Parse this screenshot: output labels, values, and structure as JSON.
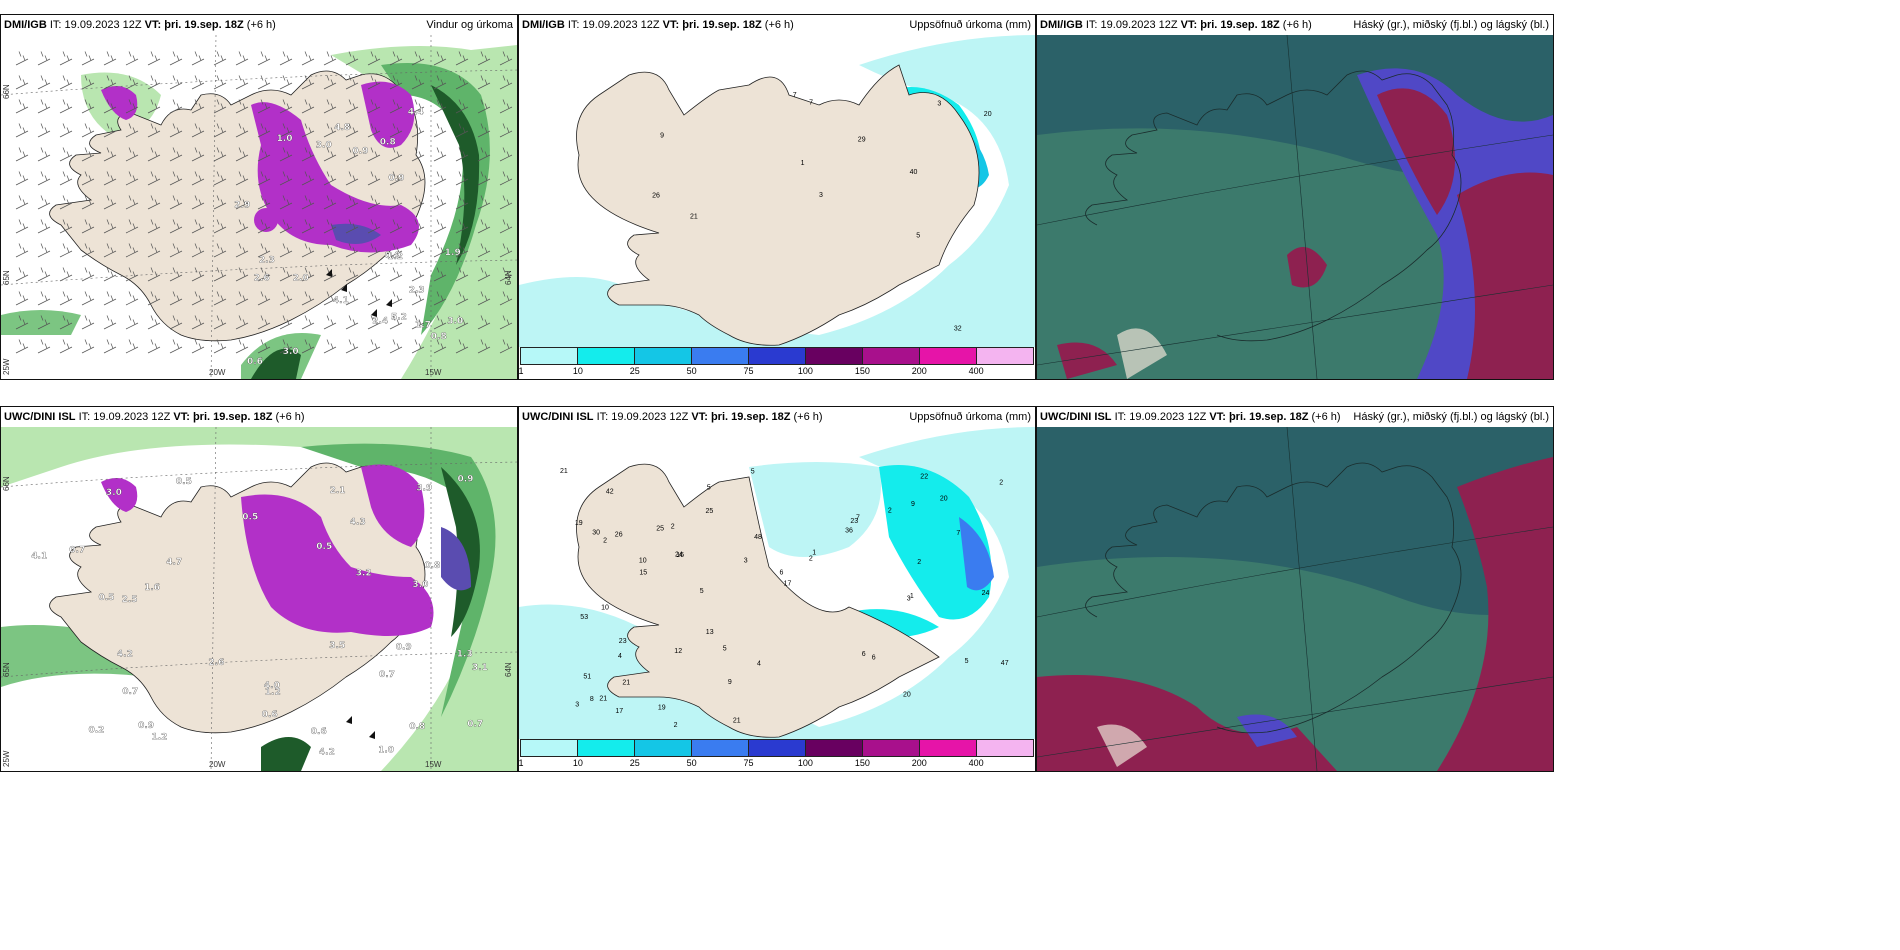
{
  "panels": {
    "p1": {
      "model": "DMI/IGB",
      "it": "19.09.2023 12Z",
      "vt_label": "VT:",
      "vt": "þri. 19.sep. 18Z",
      "lead": "(+6 h)",
      "product": "Vindur og úrkoma",
      "lat_labels": [
        "66N",
        "65N"
      ],
      "lat_labels2": [
        "64N"
      ],
      "lon_labels": [
        "20W",
        "15W"
      ],
      "lon_left": "25W",
      "values": [
        "4.1",
        "4.8",
        "3.0",
        "2.0",
        "0.6",
        "4.4",
        "1.9",
        "0.8",
        "3.0",
        "2.4",
        "3.0",
        "2.9",
        "2.3",
        "0.9",
        "0.9",
        "1.2",
        "0.8",
        "0.9",
        "5.2",
        "1.0",
        "1.7",
        "2.6",
        "2.3"
      ]
    },
    "p2": {
      "model": "DMI/IGB",
      "it": "19.09.2023 12Z",
      "vt_label": "VT:",
      "vt": "þri. 19.sep. 18Z",
      "lead": "(+6 h)",
      "product": "Uppsöfnuð úrkoma (mm)",
      "values": [
        "26",
        "7",
        "40",
        "20",
        "9",
        "32",
        "21",
        "29",
        "1",
        "3",
        "3",
        "5",
        "7"
      ]
    },
    "p3": {
      "model": "DMI/IGB",
      "it": "19.09.2023 12Z",
      "vt_label": "VT:",
      "vt": "þri. 19.sep. 18Z",
      "lead": "(+6 h)",
      "product": "Háský (gr.), miðský (fj.bl.) og lágský (bl.)"
    },
    "p4": {
      "model": "UWC/DINI ISL",
      "it": "19.09.2023 12Z",
      "vt_label": "VT:",
      "vt": "þri. 19.sep. 18Z",
      "lead": "(+6 h)",
      "product": "",
      "lat_labels": [
        "66N",
        "65N"
      ],
      "lat_labels2": [
        "64N"
      ],
      "lon_labels": [
        "20W",
        "15W"
      ],
      "lon_left": "25W",
      "values": [
        "1.3",
        "1.0",
        "1.2",
        "0.2",
        "4.0",
        "4.7",
        "0.5",
        "4.3",
        "4.2",
        "3.0",
        "3.5",
        "3.9",
        "4.1",
        "3.2",
        "1.2",
        "3.0",
        "0.7",
        "0.9",
        "2.1",
        "0.5",
        "0.7",
        "0.9",
        "0.8",
        "0.5",
        "0.9",
        "0.5",
        "0.7",
        "2.6",
        "4.2",
        "1.6",
        "0.6",
        "0.8",
        "0.7",
        "0.6",
        "3.1",
        "2.5"
      ]
    },
    "p5": {
      "model": "UWC/DINI ISL",
      "it": "19.09.2023 12Z",
      "vt_label": "VT:",
      "vt": "þri. 19.sep. 18Z",
      "lead": "(+6 h)",
      "product": "Uppsöfnuð úrkoma (mm)",
      "values": [
        "22",
        "12",
        "25",
        "20",
        "10",
        "23",
        "24",
        "21",
        "9",
        "7",
        "13",
        "21",
        "16",
        "19",
        "17",
        "30",
        "42",
        "53",
        "48",
        "5",
        "5",
        "6",
        "15",
        "9",
        "17",
        "19",
        "36",
        "26",
        "25",
        "24",
        "21",
        "51",
        "47",
        "10",
        "7",
        "21",
        "2",
        "3",
        "8",
        "2",
        "20",
        "2",
        "2",
        "23",
        "1",
        "2",
        "3",
        "2",
        "3",
        "2",
        "4",
        "1",
        "5",
        "5",
        "6",
        "5",
        "4",
        "6"
      ]
    },
    "p6": {
      "model": "UWC/DINI ISL",
      "it": "19.09.2023 12Z",
      "vt_label": "VT:",
      "vt": "þri. 19.sep. 18Z",
      "lead": "(+6 h)",
      "product": "Háský (gr.), miðský (fj.bl.) og lágský (bl.)"
    }
  },
  "colorbar": {
    "ticks": [
      "1",
      "10",
      "25",
      "50",
      "75",
      "100",
      "150",
      "200",
      "400"
    ],
    "colors": [
      "#b6f8f8",
      "#14ecec",
      "#14c6e6",
      "#3a7cf0",
      "#2a3ad0",
      "#680060",
      "#a8108c",
      "#e614a8",
      "#f4b4f0"
    ]
  },
  "colors": {
    "land": "#ede3d6",
    "sea_precip": "#bdf5f5",
    "cloud_dark": "#2b6168",
    "cloud_mid": "#3c7a6c",
    "cloud_low": "#8e2150",
    "cloud_purple": "#5048c6",
    "green_dark": "#1e5b2a",
    "green_light": "#b9e6b0",
    "magenta": "#b230c8"
  }
}
